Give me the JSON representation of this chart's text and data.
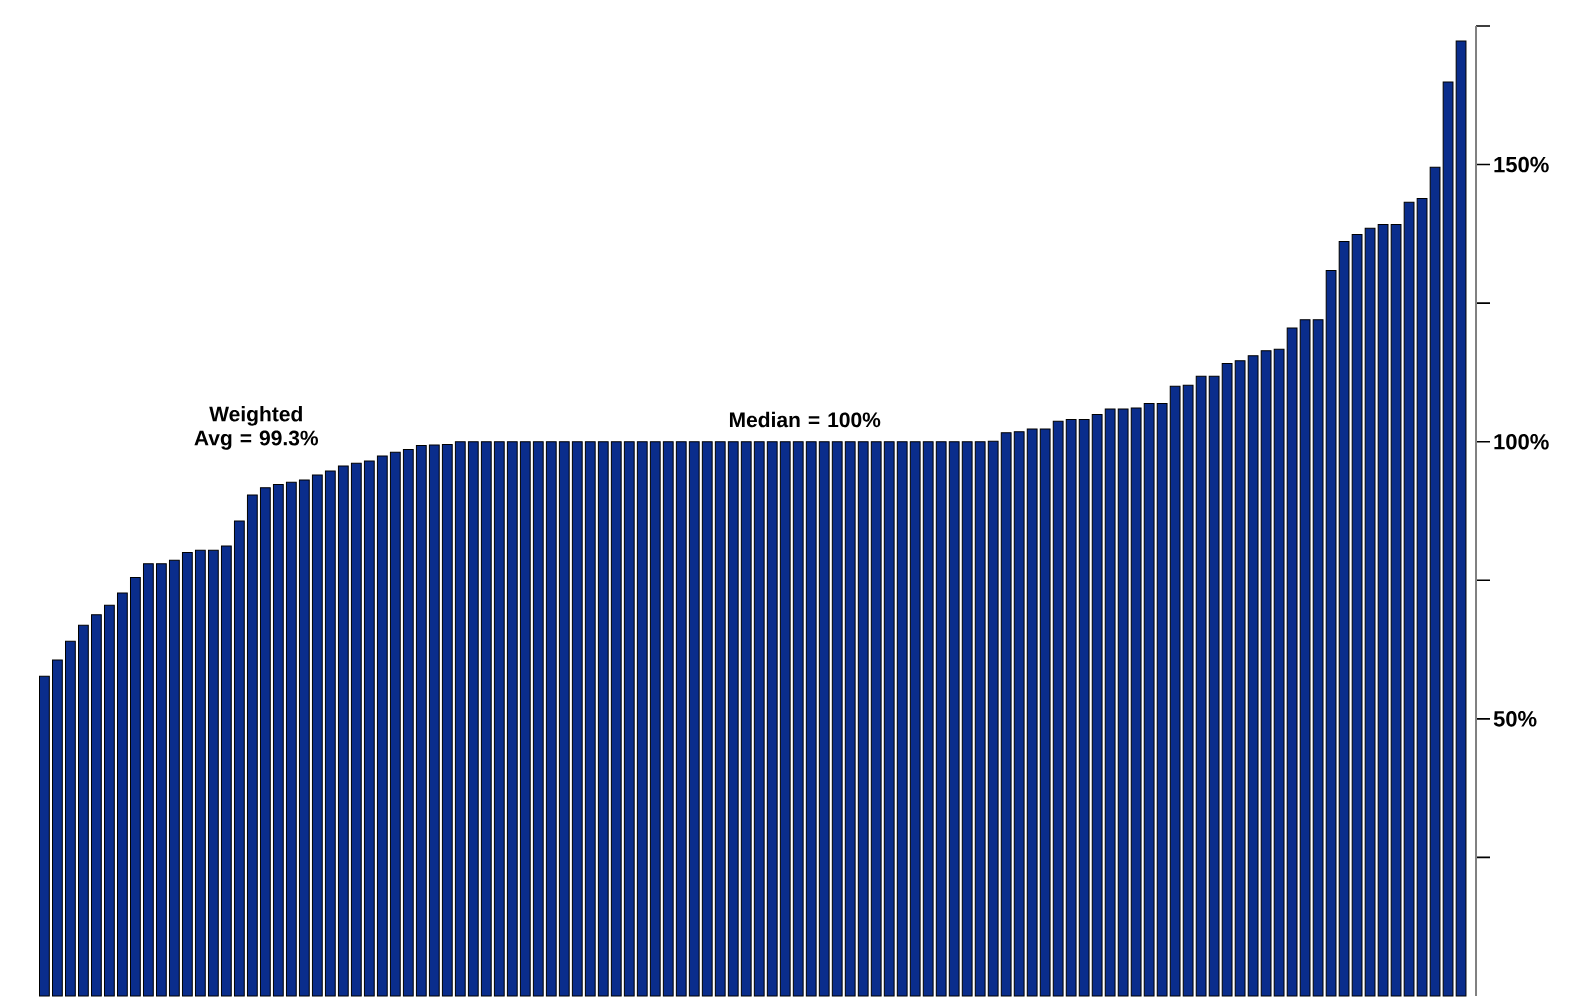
{
  "chart_data": {
    "type": "bar",
    "categories": [
      null,
      null,
      null,
      null,
      null,
      null,
      null,
      null,
      null,
      null,
      null,
      null,
      null,
      null,
      null,
      null,
      null,
      null,
      null,
      null,
      null,
      null,
      null,
      null,
      null,
      null,
      null,
      null,
      null,
      null,
      null,
      null,
      null,
      null,
      null,
      null,
      null,
      null,
      null,
      null,
      null,
      null,
      null,
      null,
      null,
      null,
      null,
      null,
      null,
      null,
      null,
      null,
      null,
      null,
      null,
      null,
      null,
      null,
      null,
      null,
      null,
      null,
      null,
      null,
      null,
      null,
      null,
      null,
      null,
      null,
      null,
      null,
      null,
      null,
      null,
      null,
      null,
      null,
      null,
      null,
      null,
      null,
      null,
      null,
      null,
      null,
      null,
      null,
      null,
      null,
      null,
      null,
      null,
      null,
      null,
      null,
      null,
      null,
      null,
      null,
      null,
      null,
      null,
      null,
      null,
      null,
      null,
      null,
      null,
      null
    ],
    "values": [
      57.7,
      60.6,
      64.0,
      66.9,
      68.8,
      70.5,
      72.7,
      75.5,
      78.0,
      78.0,
      78.6,
      80.0,
      80.4,
      80.4,
      81.2,
      85.7,
      90.4,
      91.7,
      92.3,
      92.7,
      93.1,
      94.0,
      94.7,
      95.6,
      96.1,
      96.5,
      97.4,
      98.1,
      98.6,
      99.3,
      99.4,
      99.5,
      100,
      100,
      100,
      100,
      100,
      100,
      100,
      100,
      100,
      100,
      100,
      100,
      100,
      100,
      100,
      100,
      100,
      100,
      100,
      100,
      100,
      100,
      100,
      100,
      100,
      100,
      100,
      100,
      100,
      100,
      100,
      100,
      100,
      100,
      100,
      100,
      100,
      100,
      100,
      100,
      100,
      100.1,
      101.6,
      101.8,
      102.3,
      102.3,
      103.7,
      104.0,
      104.0,
      104.9,
      105.9,
      105.9,
      106.1,
      106.9,
      106.9,
      110.0,
      110.2,
      111.8,
      111.8,
      114.1,
      114.6,
      115.5,
      116.4,
      116.7,
      120.5,
      122.0,
      122.0,
      130.9,
      136.1,
      137.4,
      138.5,
      139.2,
      139.2,
      143.2,
      143.9,
      149.5,
      164.9,
      172.3
    ],
    "color": "#0a2d8c",
    "ylim": [
      0,
      175
    ],
    "yticks": [
      {
        "value": 25,
        "label": null
      },
      {
        "value": 50,
        "label": "50%"
      },
      {
        "value": 75,
        "label": null
      },
      {
        "value": 100,
        "label": "100%"
      },
      {
        "value": 125,
        "label": null
      },
      {
        "value": 150,
        "label": "150%"
      },
      {
        "value": 175,
        "label": null
      }
    ],
    "annotations": [
      "Weighted Avg = 99.3%",
      "Median = 100%"
    ]
  }
}
